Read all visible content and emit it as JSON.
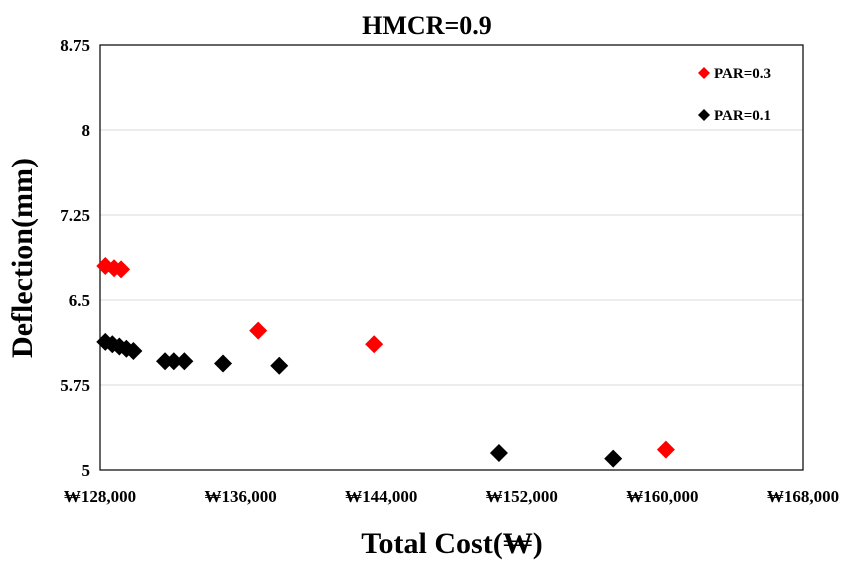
{
  "chart_data": {
    "type": "scatter",
    "title": "HMCR=0.9",
    "xlabel": "Total Cost(₩)",
    "ylabel": "Deflection(mm)",
    "xlim": [
      128000,
      168000
    ],
    "ylim": [
      5,
      8.75
    ],
    "x_ticks": [
      128000,
      136000,
      144000,
      152000,
      160000,
      168000
    ],
    "x_tick_labels": [
      "₩128,000",
      "₩136,000",
      "₩144,000",
      "₩152,000",
      "₩160,000",
      "₩168,000"
    ],
    "y_ticks": [
      5,
      5.75,
      6.5,
      7.25,
      8,
      8.75
    ],
    "y_tick_labels": [
      "5",
      "5.75",
      "6.5",
      "7.25",
      "8",
      "8.75"
    ],
    "grid": "horizontal",
    "legend_position": "top-right",
    "series": [
      {
        "name": "PAR=0.3",
        "color": "#ff0000",
        "marker": "diamond",
        "points": [
          {
            "x": 128300,
            "y": 6.8
          },
          {
            "x": 128800,
            "y": 6.78
          },
          {
            "x": 129200,
            "y": 6.77
          },
          {
            "x": 137000,
            "y": 6.23
          },
          {
            "x": 143600,
            "y": 6.11
          },
          {
            "x": 160200,
            "y": 5.18
          }
        ]
      },
      {
        "name": "PAR=0.1",
        "color": "#000000",
        "marker": "diamond",
        "points": [
          {
            "x": 128300,
            "y": 6.13
          },
          {
            "x": 128700,
            "y": 6.11
          },
          {
            "x": 129100,
            "y": 6.09
          },
          {
            "x": 129500,
            "y": 6.07
          },
          {
            "x": 129900,
            "y": 6.05
          },
          {
            "x": 131700,
            "y": 5.96
          },
          {
            "x": 132200,
            "y": 5.96
          },
          {
            "x": 132800,
            "y": 5.96
          },
          {
            "x": 135000,
            "y": 5.94
          },
          {
            "x": 138200,
            "y": 5.92
          },
          {
            "x": 150700,
            "y": 5.15
          },
          {
            "x": 157200,
            "y": 5.1
          }
        ]
      }
    ]
  }
}
